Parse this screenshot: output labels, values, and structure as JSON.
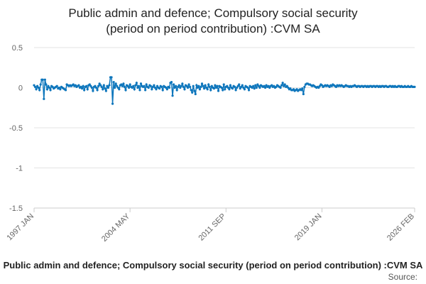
{
  "chart_data": {
    "type": "line",
    "title": [
      "Public admin and defence; Compulsory social security",
      "(period on period contribution) :CVM SA"
    ],
    "caption": "Public admin and defence; Compulsory social security (period on period contribution) :CVM SA",
    "source": "Source:",
    "ylim": [
      -1.5,
      0.5
    ],
    "yticks": [
      0.5,
      0,
      -0.5,
      -1,
      -1.5
    ],
    "grid": true,
    "categories": [
      "1997 JAN",
      null,
      null,
      null,
      null,
      null,
      null,
      null,
      null,
      null,
      null,
      null,
      null,
      null,
      null,
      null,
      null,
      null,
      null,
      null,
      null,
      null,
      null,
      null,
      null,
      null,
      null,
      null,
      null,
      null,
      null,
      null,
      null,
      null,
      null,
      null,
      null,
      null,
      null,
      null,
      null,
      null,
      null,
      null,
      null,
      null,
      null,
      null,
      null,
      null,
      null,
      null,
      null,
      null,
      null,
      null,
      null,
      null,
      null,
      null,
      null,
      null,
      null,
      null,
      null,
      null,
      null,
      null,
      null,
      null,
      null,
      null,
      null,
      null,
      null,
      null,
      null,
      null,
      null,
      null,
      null,
      null,
      null,
      null,
      null,
      null,
      null,
      null,
      "2004 MAY",
      null,
      null,
      null,
      null,
      null,
      null,
      null,
      null,
      null,
      null,
      null,
      null,
      null,
      null,
      null,
      null,
      null,
      null,
      null,
      null,
      null,
      null,
      null,
      null,
      null,
      null,
      null,
      null,
      null,
      null,
      null,
      null,
      null,
      null,
      null,
      null,
      null,
      null,
      null,
      null,
      null,
      null,
      null,
      null,
      null,
      null,
      null,
      null,
      null,
      null,
      null,
      null,
      null,
      null,
      null,
      null,
      null,
      null,
      null,
      null,
      null,
      null,
      null,
      null,
      null,
      null,
      null,
      null,
      null,
      null,
      null,
      null,
      null,
      null,
      null,
      null,
      null,
      null,
      null,
      null,
      null,
      null,
      null,
      null,
      null,
      null,
      null,
      "2011 SEP",
      null,
      null,
      null,
      null,
      null,
      null,
      null,
      null,
      null,
      null,
      null,
      null,
      null,
      null,
      null,
      null,
      null,
      null,
      null,
      null,
      null,
      null,
      null,
      null,
      null,
      null,
      null,
      null,
      null,
      null,
      null,
      null,
      null,
      null,
      null,
      null,
      null,
      null,
      null,
      null,
      null,
      null,
      null,
      null,
      null,
      null,
      null,
      null,
      null,
      null,
      null,
      null,
      null,
      null,
      null,
      null,
      null,
      null,
      null,
      null,
      null,
      null,
      null,
      null,
      null,
      null,
      null,
      null,
      null,
      null,
      null,
      null,
      null,
      null,
      null,
      null,
      null,
      null,
      null,
      null,
      null,
      null,
      null,
      null,
      null,
      null,
      null,
      "2019 JAN",
      null,
      null,
      null,
      null,
      null,
      null,
      null,
      null,
      null,
      null,
      null,
      null,
      null,
      null,
      null,
      null,
      null,
      null,
      null,
      null,
      null,
      null,
      null,
      null,
      null,
      null,
      null,
      null,
      null,
      null,
      null,
      null,
      null,
      null,
      null,
      null,
      null,
      null,
      null,
      null,
      null,
      null,
      null,
      null,
      null,
      null,
      null,
      null,
      null,
      null,
      null,
      null,
      null,
      null,
      null,
      null,
      null,
      null,
      null,
      null,
      null,
      null,
      null,
      null,
      null,
      null,
      null,
      null,
      null,
      null,
      null,
      null,
      null,
      null,
      null,
      null,
      null,
      null,
      null,
      null,
      null,
      null,
      null,
      null,
      "2026 FEB"
    ],
    "series": [
      {
        "name": "Public admin and defence; Compulsory social security (period on period contribution) :CVM SA",
        "color": "#0e76bc",
        "values": [
          0.03,
          0.01,
          -0.02,
          0.02,
          0.0,
          -0.03,
          0.04,
          0.1,
          0.1,
          -0.14,
          0.1,
          0.04,
          -0.02,
          0.02,
          0.0,
          -0.03,
          0.02,
          0.01,
          -0.01,
          0.0,
          0.01,
          0.02,
          -0.01,
          0.0,
          -0.02,
          0.01,
          0.0,
          -0.01,
          -0.02,
          -0.03,
          0.04,
          0.03,
          0.02,
          0.03,
          0.02,
          0.03,
          0.04,
          0.02,
          0.03,
          0.01,
          0.02,
          0.03,
          0.0,
          0.01,
          -0.01,
          0.02,
          -0.03,
          0.01,
          0.02,
          -0.02,
          0.03,
          0.04,
          0.02,
          0.0,
          -0.04,
          0.01,
          0.02,
          0.0,
          -0.03,
          0.02,
          0.05,
          0.03,
          0.01,
          -0.02,
          0.03,
          -0.01,
          -0.04,
          0.02,
          0.0,
          0.03,
          0.13,
          0.13,
          -0.2,
          0.07,
          0.0,
          0.05,
          0.02,
          0.0,
          -0.02,
          0.03,
          0.04,
          0.02,
          0.05,
          0.01,
          -0.03,
          0.03,
          0.02,
          0.0,
          0.04,
          0.01,
          0.0,
          0.02,
          -0.02,
          0.03,
          0.06,
          0.0,
          0.02,
          -0.03,
          0.05,
          0.02,
          0.01,
          0.02,
          -0.03,
          0.04,
          0.01,
          0.0,
          0.03,
          0.02,
          -0.02,
          0.01,
          0.03,
          0.0,
          -0.02,
          0.02,
          0.0,
          -0.01,
          0.02,
          0.01,
          -0.03,
          0.02,
          0.01,
          0.0,
          -0.02,
          0.01,
          0.0,
          0.06,
          0.07,
          -0.1,
          0.04,
          0.0,
          0.02,
          -0.03,
          0.01,
          0.03,
          0.0,
          0.02,
          0.05,
          0.01,
          -0.02,
          0.03,
          0.02,
          0.0,
          0.04,
          0.01,
          -0.03,
          -0.06,
          0.02,
          -0.04,
          -0.08,
          0.03,
          0.0,
          0.02,
          -0.02,
          0.01,
          0.05,
          0.02,
          -0.01,
          0.03,
          0.0,
          -0.02,
          0.04,
          0.01,
          -0.03,
          0.02,
          0.0,
          -0.01,
          0.03,
          0.0,
          0.02,
          -0.04,
          0.02,
          0.01,
          0.0,
          -0.03,
          0.04,
          -0.02,
          0.01,
          0.02,
          0.0,
          -0.02,
          0.03,
          0.0,
          -0.01,
          0.02,
          0.01,
          -0.03,
          0.0,
          0.02,
          0.04,
          -0.01,
          0.01,
          0.03,
          0.0,
          -0.02,
          0.02,
          0.01,
          0.0,
          -0.03,
          0.02,
          0.01,
          0.0,
          0.02,
          -0.01,
          0.03,
          0.0,
          0.04,
          0.02,
          0.0,
          0.03,
          0.02,
          0.01,
          0.02,
          0.0,
          0.03,
          0.01,
          0.02,
          0.0,
          0.02,
          0.03,
          0.01,
          0.02,
          0.0,
          0.01,
          0.03,
          0.02,
          0.01,
          0.0,
          0.03,
          0.06,
          0.02,
          0.04,
          0.01,
          0.02,
          0.0,
          -0.02,
          -0.01,
          -0.03,
          -0.03,
          -0.02,
          -0.04,
          -0.03,
          -0.02,
          -0.04,
          -0.03,
          -0.02,
          -0.03,
          -0.01,
          -0.08,
          0.01,
          0.04,
          0.05,
          0.05,
          0.04,
          0.04,
          0.03,
          0.02,
          0.03,
          0.02,
          0.01,
          0.0,
          0.01,
          0.0,
          0.02,
          0.04,
          0.03,
          0.01,
          0.02,
          0.03,
          0.02,
          0.03,
          0.02,
          0.01,
          0.03,
          0.02,
          0.04,
          0.03,
          0.02,
          0.01,
          0.03,
          0.02,
          0.03,
          0.02,
          0.03,
          0.02,
          0.01,
          0.02,
          0.03,
          0.02,
          0.02,
          0.01,
          0.02,
          0.01,
          0.02,
          0.02,
          0.03,
          0.02,
          0.01,
          0.02,
          0.02,
          0.01,
          0.02,
          0.02,
          0.01,
          0.02,
          0.02,
          0.01,
          0.02,
          0.01,
          0.02,
          0.02,
          0.01,
          0.02,
          0.02,
          0.01,
          0.02,
          0.02,
          0.01,
          0.02,
          0.01,
          0.02,
          0.02,
          0.01,
          0.02,
          0.02,
          0.01,
          0.01,
          0.02,
          0.02,
          0.01,
          0.02,
          0.01,
          0.02,
          0.01,
          0.01,
          0.02,
          0.02,
          0.01,
          0.02,
          0.01,
          0.01,
          0.02,
          0.01,
          0.01,
          0.02,
          0.01,
          0.01,
          0.02,
          0.01,
          0.01,
          0.01
        ]
      }
    ]
  }
}
